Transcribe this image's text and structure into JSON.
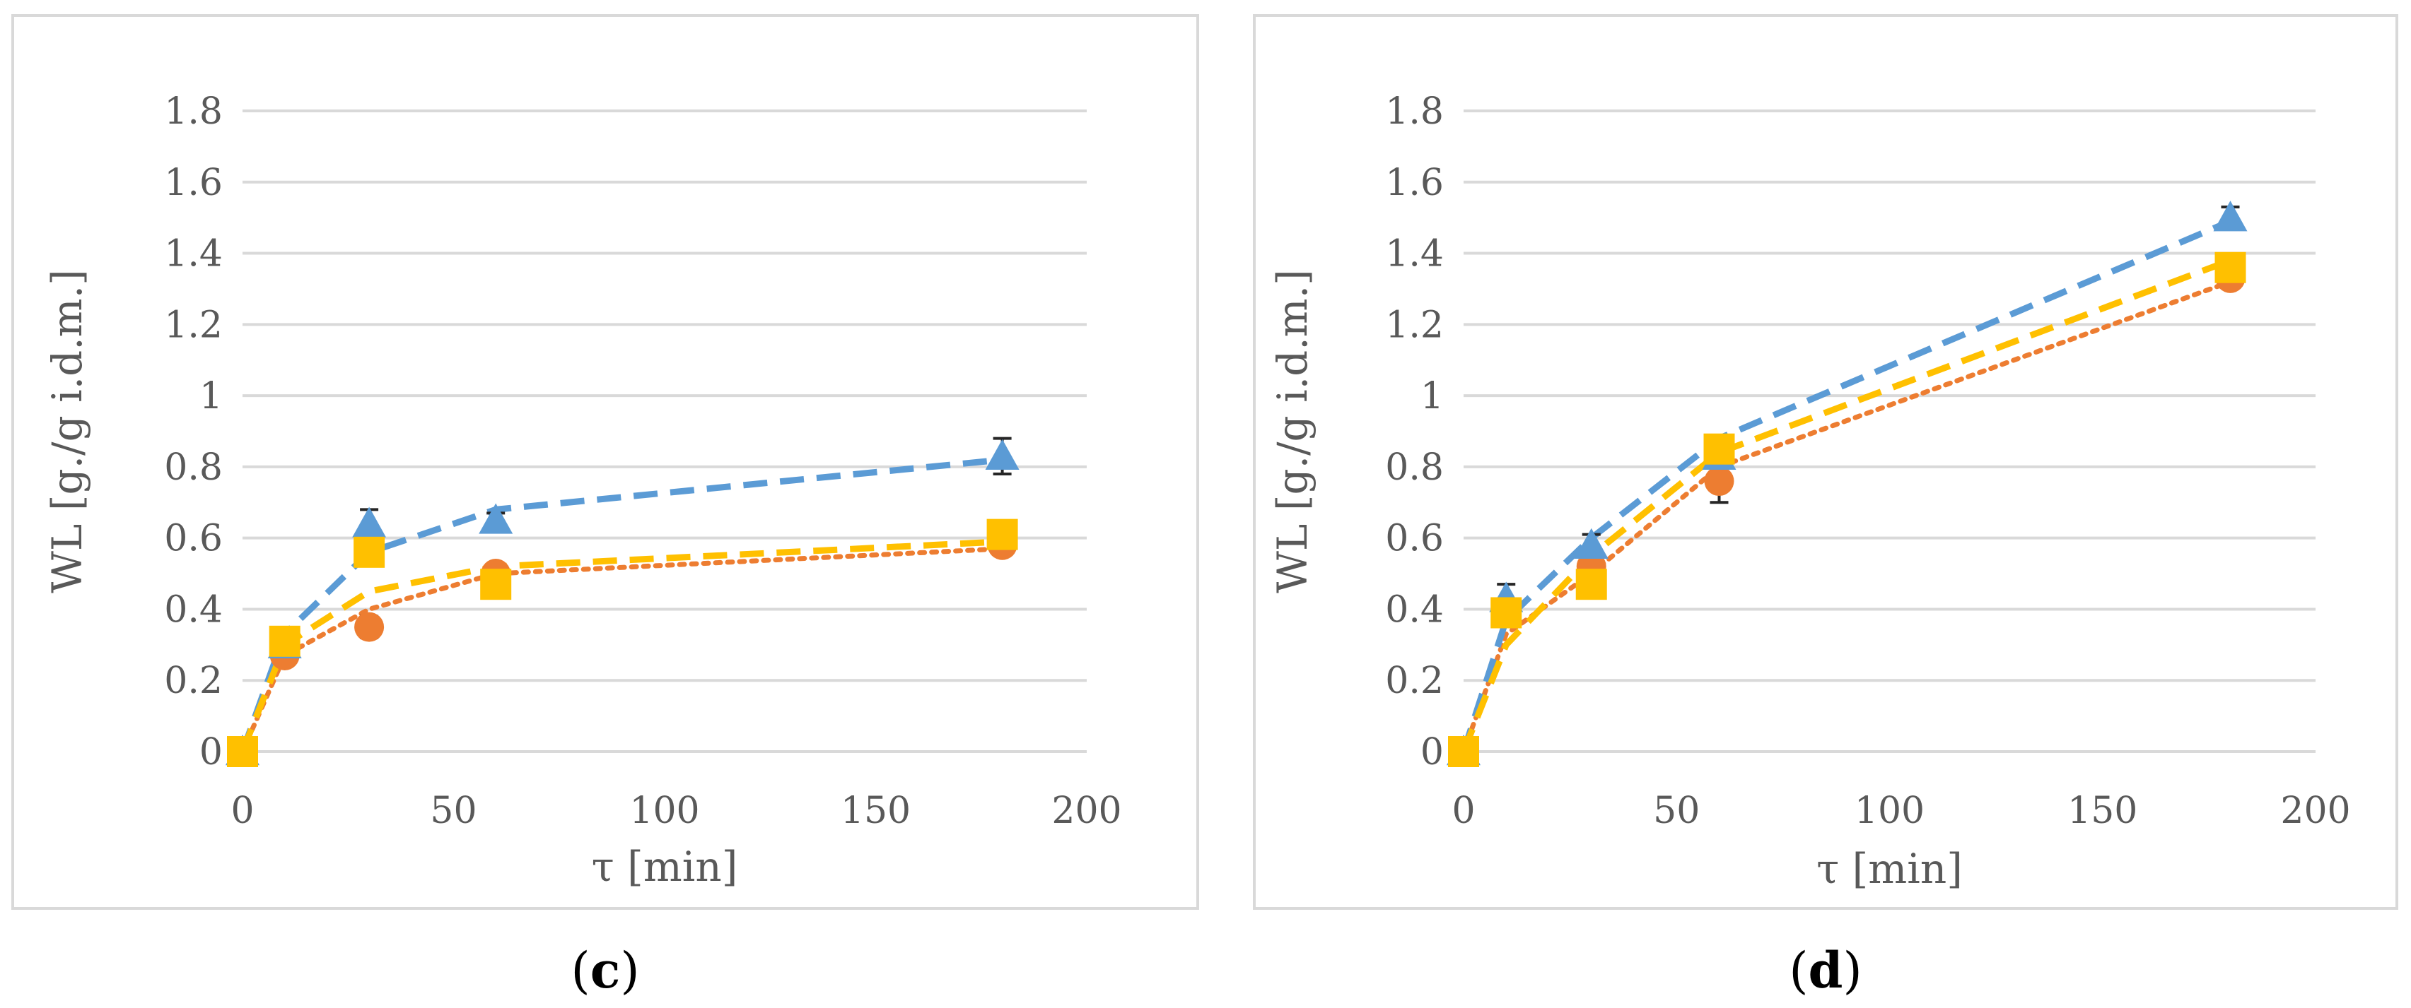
{
  "chart_data": [
    {
      "type": "line",
      "panel": "c",
      "caption": {
        "open": "(",
        "letter": "c",
        "close": ")"
      },
      "xlabel": "τ [min]",
      "ylabel": "WL [g./g i.d.m.]",
      "xlim": [
        0,
        200
      ],
      "ylim": [
        0,
        1.8
      ],
      "xticks": [
        0,
        50,
        100,
        150,
        200
      ],
      "yticks": [
        0,
        0.2,
        0.4,
        0.6,
        0.8,
        1,
        1.2,
        1.4,
        1.6,
        1.8
      ],
      "ytick_labels": [
        "0",
        "0.2",
        "0.4",
        "0.6",
        "0.8",
        "1",
        "1.2",
        "1.4",
        "1.6",
        "1.8"
      ],
      "grid": true,
      "series": [
        {
          "name": "orange-circle",
          "color": "#ED7D31",
          "marker": "circle",
          "line_style": "dotted",
          "x": [
            0,
            10,
            30,
            60,
            180
          ],
          "values": [
            0,
            0.27,
            0.35,
            0.5,
            0.58
          ],
          "error": [
            0.01,
            0.02,
            0.03,
            0.02,
            0.02
          ],
          "fit": [
            0,
            0.27,
            0.4,
            0.5,
            0.57
          ]
        },
        {
          "name": "blue-triangle",
          "color": "#5B9BD5",
          "marker": "triangle",
          "line_style": "dashed",
          "x": [
            0,
            10,
            30,
            60,
            180
          ],
          "values": [
            0,
            0.3,
            0.64,
            0.65,
            0.83
          ],
          "error": [
            0.01,
            0.02,
            0.04,
            0.02,
            0.05
          ],
          "fit": [
            0,
            0.33,
            0.56,
            0.68,
            0.82
          ]
        },
        {
          "name": "yellow-square",
          "color": "#FFC000",
          "marker": "square",
          "line_style": "dashed",
          "x": [
            0,
            10,
            30,
            60,
            180
          ],
          "values": [
            0,
            0.31,
            0.56,
            0.47,
            0.61
          ],
          "error": [
            0.01,
            0.02,
            0.02,
            0.02,
            0.02
          ],
          "fit": [
            0,
            0.3,
            0.45,
            0.52,
            0.59
          ]
        }
      ]
    },
    {
      "type": "line",
      "panel": "d",
      "caption": {
        "open": "(",
        "letter": "d",
        "close": ")"
      },
      "xlabel": "τ [min]",
      "ylabel": "WL [g./g i.d.m.]",
      "xlim": [
        0,
        200
      ],
      "ylim": [
        0,
        1.8
      ],
      "xticks": [
        0,
        50,
        100,
        150,
        200
      ],
      "yticks": [
        0,
        0.2,
        0.4,
        0.6,
        0.8,
        1,
        1.2,
        1.4,
        1.6,
        1.8
      ],
      "ytick_labels": [
        "0",
        "0.2",
        "0.4",
        "0.6",
        "0.8",
        "1",
        "1.2",
        "1.4",
        "1.6",
        "1.8"
      ],
      "grid": true,
      "series": [
        {
          "name": "orange-circle",
          "color": "#ED7D31",
          "marker": "circle",
          "line_style": "dotted",
          "x": [
            0,
            10,
            30,
            60,
            180
          ],
          "values": [
            0,
            0.39,
            0.52,
            0.76,
            1.33
          ],
          "error": [
            0.01,
            0.02,
            0.03,
            0.06,
            0.02
          ],
          "fit": [
            0,
            0.33,
            0.5,
            0.8,
            1.32
          ]
        },
        {
          "name": "blue-triangle",
          "color": "#5B9BD5",
          "marker": "triangle",
          "line_style": "dashed",
          "x": [
            0,
            10,
            30,
            60,
            180
          ],
          "values": [
            0,
            0.43,
            0.58,
            0.83,
            1.5
          ],
          "error": [
            0.01,
            0.04,
            0.03,
            0.03,
            0.03
          ],
          "fit": [
            0,
            0.37,
            0.6,
            0.88,
            1.49
          ]
        },
        {
          "name": "yellow-square",
          "color": "#FFC000",
          "marker": "square",
          "line_style": "dashed",
          "x": [
            0,
            10,
            30,
            60,
            180
          ],
          "values": [
            0,
            0.39,
            0.47,
            0.85,
            1.36
          ],
          "error": [
            0.01,
            0.02,
            0.02,
            0.03,
            0.02
          ],
          "fit": [
            0,
            0.3,
            0.55,
            0.84,
            1.38
          ]
        }
      ]
    }
  ]
}
